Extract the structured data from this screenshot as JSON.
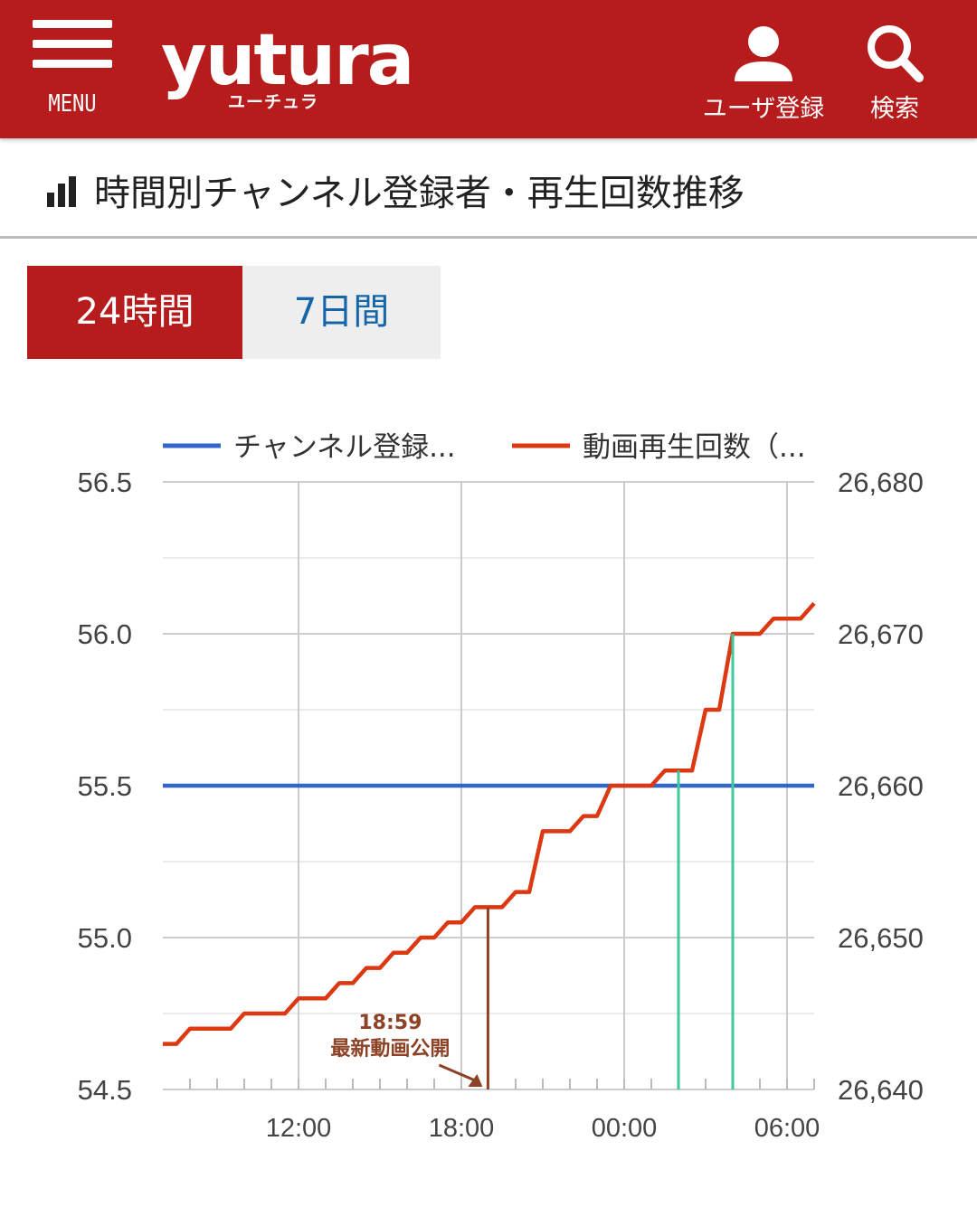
{
  "header": {
    "menu_label": "MENU",
    "logo_text": "yutura",
    "logo_sub": "ユーチュラ",
    "user_register_label": "ユーザ登録",
    "search_label": "検索",
    "bg_color": "#b71c1c"
  },
  "section": {
    "title": "時間別チャンネル登録者・再生回数推移",
    "icon": "bar-chart-icon"
  },
  "tabs": [
    {
      "label": "24時間",
      "active": true
    },
    {
      "label": "7日間",
      "active": false
    }
  ],
  "chart_data": {
    "type": "line",
    "legend": {
      "placement": "top",
      "entries": [
        {
          "label": "チャンネル登録...",
          "color": "#3366cc"
        },
        {
          "label": "動画再生回数（...",
          "color": "#dc3912"
        }
      ]
    },
    "left_axis": {
      "ticks": [
        "56.5",
        "56.0",
        "55.5",
        "55.0",
        "54.5"
      ],
      "ylim": [
        54.5,
        56.5
      ]
    },
    "right_axis": {
      "ticks": [
        "26,680",
        "26,670",
        "26,660",
        "26,650",
        "26,640"
      ],
      "ylim": [
        26640,
        26680
      ]
    },
    "x_axis": {
      "ticks": [
        "12:00",
        "18:00",
        "00:00",
        "06:00"
      ],
      "range_hours": [
        7.0,
        31.0
      ]
    },
    "grid": true,
    "series": [
      {
        "name": "チャンネル登録...",
        "axis": "left",
        "color": "#3366cc",
        "points": [
          [
            7.0,
            55.5
          ],
          [
            31.0,
            55.5
          ]
        ]
      },
      {
        "name": "動画再生回数（...",
        "axis": "right",
        "color": "#dc3912",
        "points": [
          [
            7.0,
            26643
          ],
          [
            7.5,
            26643
          ],
          [
            8.0,
            26644
          ],
          [
            8.5,
            26644
          ],
          [
            9.0,
            26644
          ],
          [
            9.5,
            26644
          ],
          [
            10.0,
            26645
          ],
          [
            10.5,
            26645
          ],
          [
            11.0,
            26645
          ],
          [
            11.5,
            26645
          ],
          [
            12.0,
            26646
          ],
          [
            12.5,
            26646
          ],
          [
            13.0,
            26646
          ],
          [
            13.5,
            26647
          ],
          [
            14.0,
            26647
          ],
          [
            14.5,
            26648
          ],
          [
            15.0,
            26648
          ],
          [
            15.5,
            26649
          ],
          [
            16.0,
            26649
          ],
          [
            16.5,
            26650
          ],
          [
            17.0,
            26650
          ],
          [
            17.5,
            26651
          ],
          [
            18.0,
            26651
          ],
          [
            18.5,
            26652
          ],
          [
            19.0,
            26652
          ],
          [
            19.5,
            26652
          ],
          [
            20.0,
            26653
          ],
          [
            20.5,
            26653
          ],
          [
            21.0,
            26657
          ],
          [
            21.5,
            26657
          ],
          [
            22.0,
            26657
          ],
          [
            22.5,
            26658
          ],
          [
            23.0,
            26658
          ],
          [
            23.5,
            26660
          ],
          [
            24.0,
            26660
          ],
          [
            24.5,
            26660
          ],
          [
            25.0,
            26660
          ],
          [
            25.5,
            26661
          ],
          [
            26.0,
            26661
          ],
          [
            26.5,
            26661
          ],
          [
            27.0,
            26665
          ],
          [
            27.5,
            26665
          ],
          [
            28.0,
            26670
          ],
          [
            28.5,
            26670
          ],
          [
            29.0,
            26670
          ],
          [
            29.5,
            26671
          ],
          [
            30.0,
            26671
          ],
          [
            30.5,
            26671
          ],
          [
            31.0,
            26672
          ]
        ]
      }
    ],
    "annotations": [
      {
        "time": "18:59",
        "label": "最新動画公開",
        "hour": 18.98,
        "color": "#8d4125"
      },
      {
        "hour": 26.0,
        "color": "#3ec99a"
      },
      {
        "hour": 28.0,
        "color": "#3ec99a"
      }
    ]
  }
}
